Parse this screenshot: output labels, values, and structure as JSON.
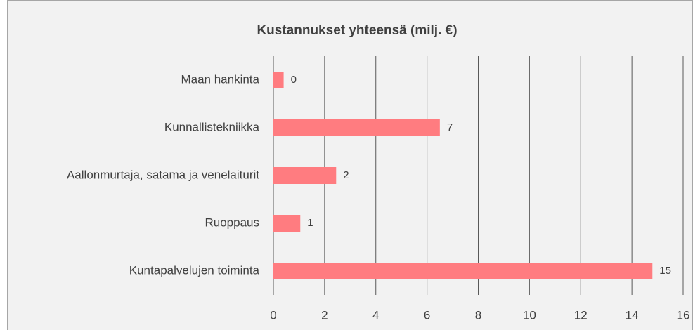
{
  "chart_data": {
    "type": "barh",
    "title": "Kustannukset yhteensä (milj. €)",
    "categories": [
      "Maan hankinta",
      "Kunnallistekniikka",
      "Aallonmurtaja, satama ja venelaiturit",
      "Ruoppaus",
      "Kuntapalvelujen toiminta"
    ],
    "values": [
      0.4,
      6.5,
      2.45,
      1.05,
      14.8
    ],
    "value_labels": [
      "0",
      "7",
      "2",
      "1",
      "15"
    ],
    "color": "#ff7c80",
    "xlim": [
      0,
      16
    ],
    "xticks": [
      0,
      2,
      4,
      6,
      8,
      10,
      12,
      14,
      16
    ],
    "grid": true
  }
}
